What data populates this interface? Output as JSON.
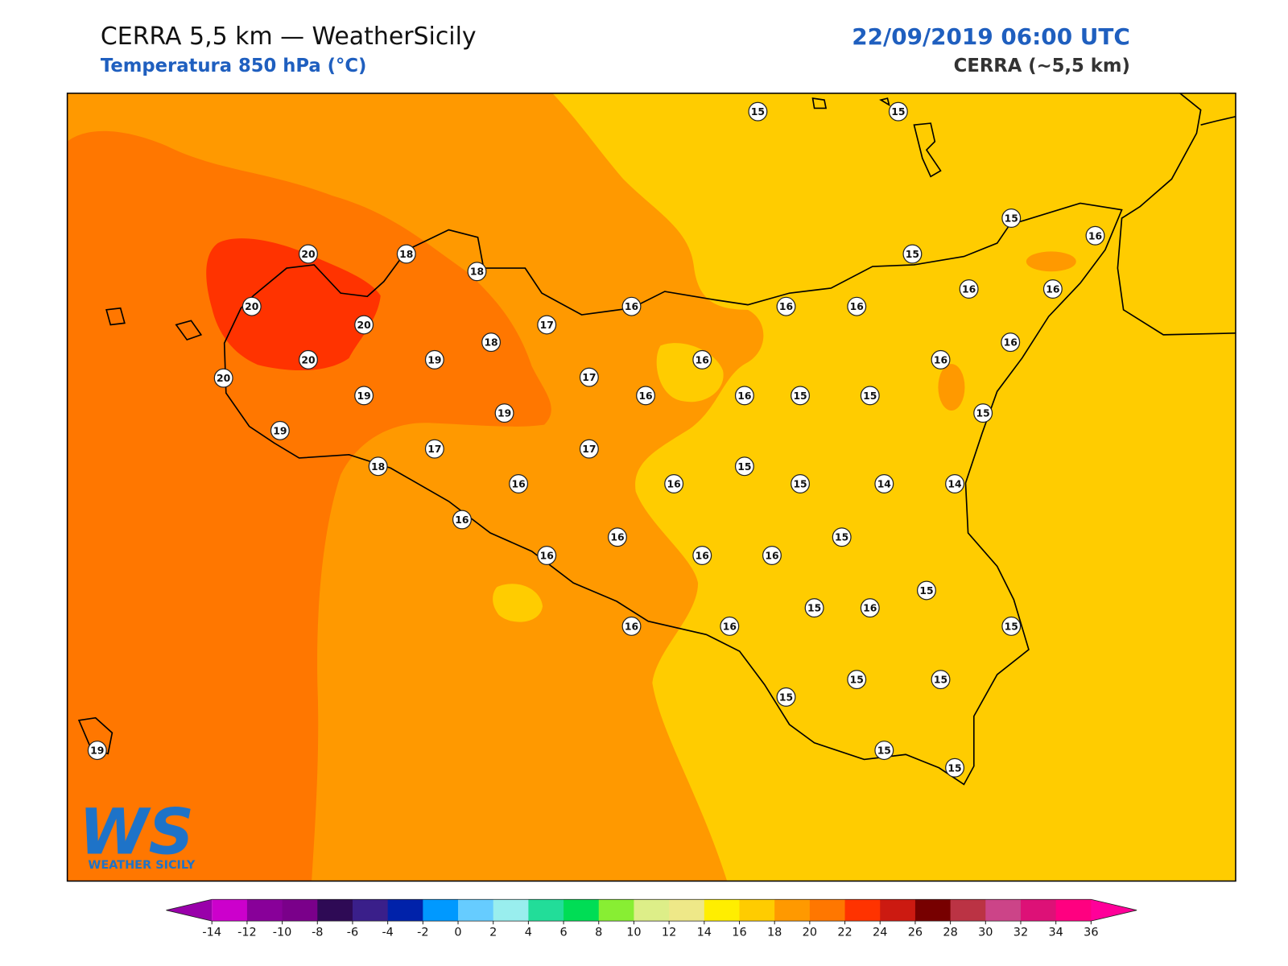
{
  "header": {
    "title": "CERRA 5,5 km — WeatherSicily",
    "subtitle": "Temperatura 850 hPa (°C)",
    "datetime": "22/09/2019 06:00 UTC",
    "model": "CERRA (~5,5 km)"
  },
  "logo": {
    "mark": "WS",
    "name": "WEATHER SICILY"
  },
  "stations": [
    15,
    15,
    15,
    16,
    15,
    16,
    16,
    16,
    16,
    16,
    16,
    15,
    15,
    15,
    16,
    16,
    16,
    16,
    17,
    17,
    18,
    18,
    18,
    20,
    20,
    20,
    20,
    20,
    19,
    19,
    19,
    19,
    17,
    17,
    18,
    16,
    16,
    15,
    15,
    14,
    14,
    15,
    16,
    16,
    16,
    16,
    16,
    15,
    15,
    16,
    15,
    16,
    16,
    15,
    15,
    15,
    15,
    15,
    19
  ],
  "colorbar": {
    "ticks": [
      -14,
      -12,
      -10,
      -8,
      -6,
      -4,
      -2,
      0,
      2,
      4,
      6,
      8,
      10,
      12,
      14,
      16,
      18,
      20,
      22,
      24,
      26,
      28,
      30,
      32,
      34,
      36
    ],
    "colors": [
      "#cc00cc",
      "#880099",
      "#7a008a",
      "#2e0a55",
      "#3a1f8a",
      "#0022aa",
      "#0099ff",
      "#66ccff",
      "#99eeee",
      "#22dd99",
      "#00dd55",
      "#88ee33",
      "#ddee88",
      "#eee888",
      "#ffee00",
      "#ffcc00",
      "#ff9900",
      "#ff7700",
      "#ff3300",
      "#cc1a11",
      "#770000",
      "#bb3344",
      "#cc4488",
      "#dd1177",
      "#ff0080"
    ],
    "under": "#9900aa",
    "over": "#ff0099"
  }
}
